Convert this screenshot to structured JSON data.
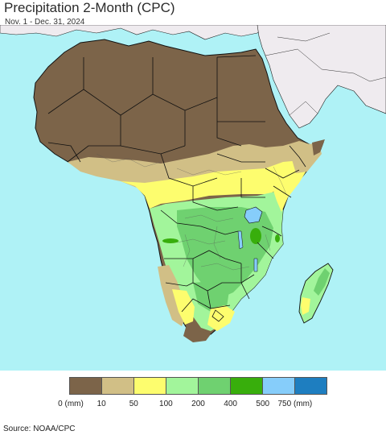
{
  "header": {
    "title": "Precipitation 2-Month (CPC)",
    "subtitle": "Nov. 1 - Dec. 31, 2024"
  },
  "colors": {
    "ocean": "#aff2f6",
    "land_outside": "#efebef",
    "lt10": "#7c6449",
    "r10_50": "#d1bf86",
    "r50_100": "#fdfd6e",
    "r100_200": "#a2f59b",
    "r200_400": "#6fd170",
    "r400_500": "#38ae0c",
    "r500_750": "#86cdfa",
    "gt750": "#1e7ec0",
    "borders": "#111111"
  },
  "legend": {
    "colors": [
      "#7c6449",
      "#d1bf86",
      "#fdfd6e",
      "#a2f59b",
      "#6fd170",
      "#38ae0c",
      "#86cdfa",
      "#1e7ec0"
    ],
    "labels": [
      "0 (mm)",
      "10",
      "50",
      "100",
      "200",
      "400",
      "500",
      "750 (mm)"
    ]
  },
  "footer": {
    "source": "Source: NOAA/CPC"
  }
}
